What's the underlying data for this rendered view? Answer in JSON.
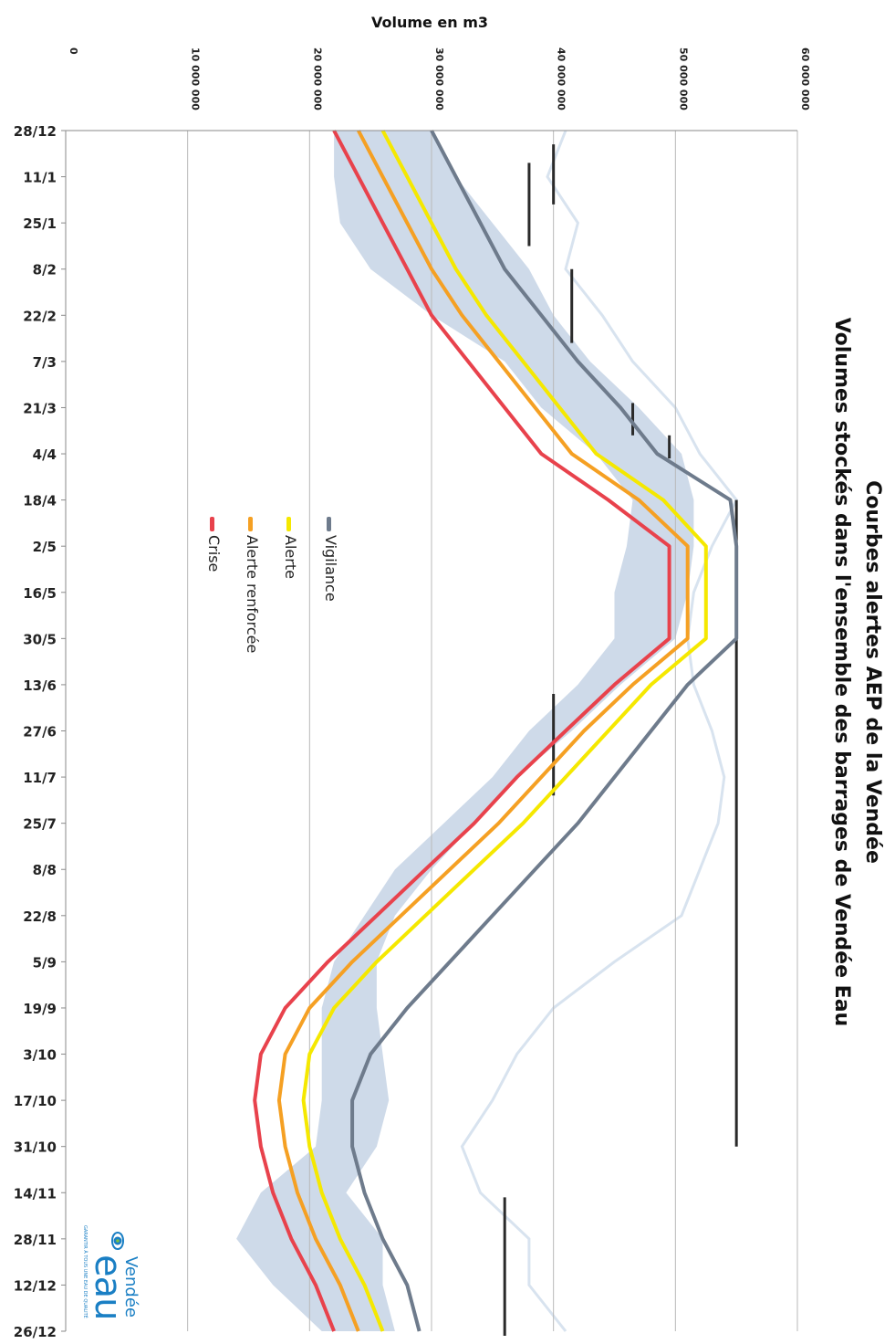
{
  "chart_data": {
    "type": "line",
    "title": "Courbes alertes AEP de la Vendée",
    "subtitle": "Volumes stockés dans l'ensemble des barrages de Vendée Eau",
    "ylabel": "Volume en m3",
    "ylim": [
      0,
      60000000
    ],
    "yticks": [
      0,
      10000000,
      20000000,
      30000000,
      40000000,
      50000000,
      60000000
    ],
    "ytick_labels": [
      "0",
      "10 000 000",
      "20 000 000",
      "30 000 000",
      "40 000 000",
      "50 000 000",
      "60 000 000"
    ],
    "categories": [
      "28/12",
      "11/1",
      "25/1",
      "8/2",
      "22/2",
      "7/3",
      "21/3",
      "4/4",
      "18/4",
      "2/5",
      "16/5",
      "30/5",
      "13/6",
      "27/6",
      "11/7",
      "25/7",
      "8/8",
      "22/8",
      "5/9",
      "19/9",
      "3/10",
      "17/10",
      "31/10",
      "14/11",
      "28/11",
      "12/12",
      "26/12"
    ],
    "grid": true,
    "legend_position": "center-left",
    "series": [
      {
        "name": "Vigilance",
        "color": "#6e7b8c",
        "values": [
          30000000,
          32000000,
          34000000,
          36000000,
          39000000,
          42000000,
          45500000,
          48500000,
          54500000,
          55000000,
          55000000,
          55000000,
          51000000,
          48000000,
          45000000,
          42000000,
          38500000,
          35000000,
          31500000,
          28000000,
          25000000,
          23500000,
          23500000,
          24500000,
          26000000,
          28000000,
          29000000
        ]
      },
      {
        "name": "Alerte",
        "color": "#f5e800",
        "values": [
          26000000,
          28000000,
          30000000,
          32000000,
          34500000,
          37500000,
          40500000,
          43500000,
          49000000,
          52500000,
          52500000,
          52500000,
          48000000,
          44500000,
          41000000,
          37500000,
          33500000,
          29500000,
          25500000,
          22000000,
          20000000,
          19500000,
          20000000,
          21000000,
          22500000,
          24500000,
          26000000
        ]
      },
      {
        "name": "Alerte renforcée",
        "color": "#f5a023",
        "values": [
          24000000,
          26000000,
          28000000,
          30000000,
          32500000,
          35500000,
          38500000,
          41500000,
          47000000,
          51000000,
          51000000,
          51000000,
          46500000,
          42500000,
          39000000,
          35500000,
          31500000,
          27500000,
          23500000,
          20000000,
          18000000,
          17500000,
          18000000,
          19000000,
          20500000,
          22500000,
          24000000
        ]
      },
      {
        "name": "Crise",
        "color": "#e8424c",
        "values": [
          22000000,
          24000000,
          26000000,
          28000000,
          30000000,
          33000000,
          36000000,
          39000000,
          44500000,
          49500000,
          49500000,
          49500000,
          45000000,
          41000000,
          37000000,
          33500000,
          29500000,
          25500000,
          21500000,
          18000000,
          16000000,
          15500000,
          16000000,
          17000000,
          18500000,
          20500000,
          22000000
        ]
      }
    ],
    "background_band": {
      "lower": [
        22000000,
        22000000,
        22500000,
        25000000,
        30000000,
        36000000,
        39000000,
        43500000,
        46500000,
        46000000,
        45000000,
        45000000,
        42000000,
        38000000,
        35000000,
        31000000,
        27000000,
        24500000,
        22000000,
        21000000,
        21000000,
        21000000,
        20500000,
        16000000,
        14000000,
        17000000,
        21000000
      ],
      "upper": [
        30000000,
        32000000,
        35000000,
        38000000,
        40000000,
        43000000,
        47000000,
        50500000,
        51500000,
        51500000,
        51000000,
        50000000,
        45500000,
        41500000,
        37000000,
        33500000,
        30000000,
        27000000,
        25500000,
        25500000,
        26000000,
        26500000,
        25500000,
        23000000,
        26000000,
        26000000,
        27000000
      ]
    },
    "extra_line": [
      41000000,
      39500000,
      42000000,
      41000000,
      44000000,
      46500000,
      50000000,
      52000000,
      55000000,
      53000000,
      51500000,
      51000000,
      51500000,
      53000000,
      54000000,
      53500000,
      52000000,
      50500000,
      45000000,
      40000000,
      37000000,
      35000000,
      32500000,
      34000000,
      38000000,
      38000000,
      41000000
    ],
    "markers": [
      {
        "x0": 0.7,
        "x1": 2.5,
        "y": 38000000
      },
      {
        "x0": 0.3,
        "x1": 1.6,
        "y": 40000000
      },
      {
        "x0": 3.0,
        "x1": 4.6,
        "y": 41500000
      },
      {
        "x0": 5.9,
        "x1": 6.6,
        "y": 46500000
      },
      {
        "x0": 6.6,
        "x1": 7.1,
        "y": 49500000
      },
      {
        "x0": 8.0,
        "x1": 22.0,
        "y": 55000000
      },
      {
        "x0": 12.2,
        "x1": 14.4,
        "y": 40000000
      },
      {
        "x0": 23.1,
        "x1": 26.1,
        "y": 36000000
      }
    ],
    "series_colors": {
      "band": "#c5d3e5",
      "extra_line": "#d8e3ef",
      "markers": "#2a2a2a"
    }
  },
  "legend": {
    "items": [
      {
        "label": "Vigilance",
        "color": "#6e7b8c"
      },
      {
        "label": "Alerte",
        "color": "#f5e800"
      },
      {
        "label": "Alerte renforcée",
        "color": "#f5a023"
      },
      {
        "label": "Crise",
        "color": "#e8424c"
      }
    ]
  },
  "logo": {
    "brand": "Vendée",
    "word": "eau",
    "tagline": "GARANTIR À TOUS UNE EAU DE QUALITÉ",
    "icon": "eye-drop-icon",
    "color": "#1a7fc4"
  }
}
